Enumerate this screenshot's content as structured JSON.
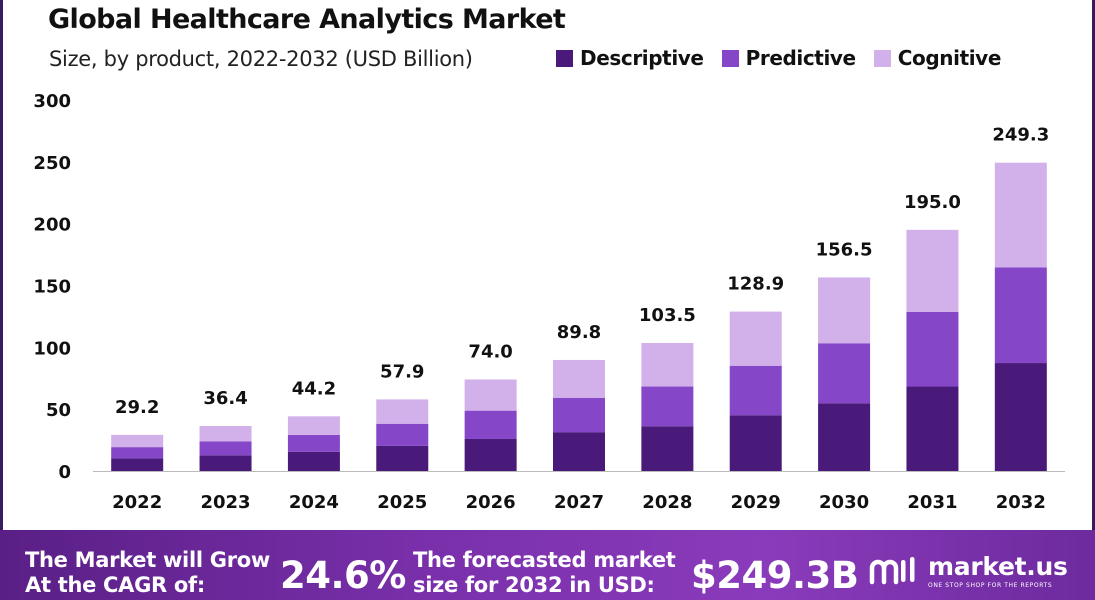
{
  "chart_data": {
    "type": "bar",
    "stacked": true,
    "title": "Global Healthcare Analytics Market",
    "subtitle": "Size, by product, 2022-2032 (USD Billion)",
    "categories": [
      "2022",
      "2023",
      "2024",
      "2025",
      "2026",
      "2027",
      "2028",
      "2029",
      "2030",
      "2031",
      "2032"
    ],
    "series": [
      {
        "name": "Descriptive",
        "color": "#4a1a7a",
        "values": [
          10.2,
          12.7,
          15.5,
          20.3,
          25.9,
          31.4,
          36.2,
          45.1,
          54.8,
          68.3,
          87.3
        ]
      },
      {
        "name": "Predictive",
        "color": "#8547c8",
        "values": [
          9.1,
          11.3,
          13.7,
          17.9,
          22.9,
          27.8,
          32.1,
          40.0,
          48.5,
          60.4,
          77.3
        ]
      },
      {
        "name": "Cognitive",
        "color": "#d2b0ea",
        "values": [
          9.9,
          12.4,
          15.0,
          19.7,
          25.2,
          30.6,
          35.2,
          43.8,
          53.2,
          66.3,
          84.7
        ]
      }
    ],
    "totals": [
      "29.2",
      "36.4",
      "44.2",
      "57.9",
      "74.0",
      "89.8",
      "103.5",
      "128.9",
      "156.5",
      "195.0",
      "249.3"
    ],
    "yticks": [
      0,
      50,
      100,
      150,
      200,
      250,
      300
    ],
    "ylim": [
      0,
      300
    ],
    "xlabel": "",
    "ylabel": "",
    "grid": false,
    "legend_position": "top-right"
  },
  "footer": {
    "cagr_text": "The Market will Grow At the CAGR of:",
    "cagr_value": "24.6%",
    "forecast_text": "The forecasted market size for 2032 in USD:",
    "forecast_value": "$249.3B",
    "brand_name": "market.us",
    "brand_tagline": "ONE STOP SHOP FOR THE REPORTS"
  }
}
